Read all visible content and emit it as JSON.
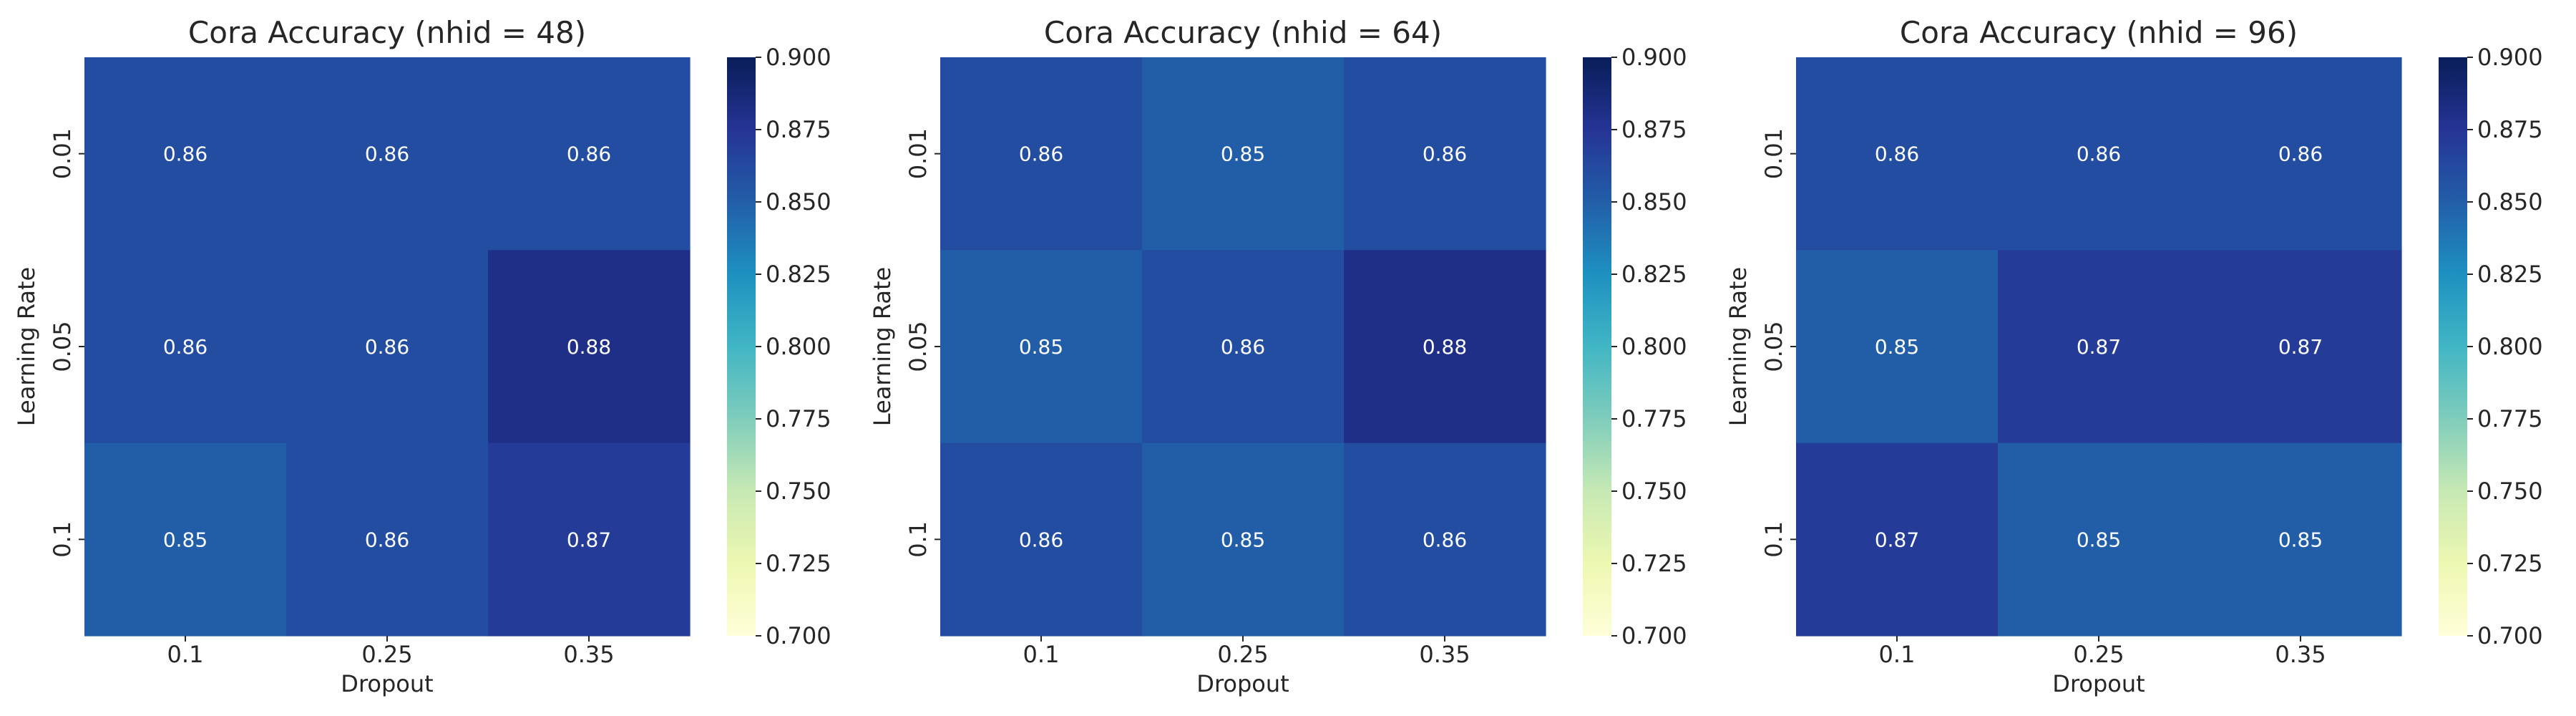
{
  "chart_data": [
    {
      "type": "heatmap",
      "title": "Cora Accuracy (nhid = 48)",
      "xlabel": "Dropout",
      "ylabel": "Learning Rate",
      "x_categories": [
        "0.1",
        "0.25",
        "0.35"
      ],
      "y_categories": [
        "0.01",
        "0.05",
        "0.1"
      ],
      "values": [
        [
          0.86,
          0.86,
          0.86
        ],
        [
          0.86,
          0.86,
          0.88
        ],
        [
          0.85,
          0.86,
          0.87
        ]
      ],
      "value_labels": [
        [
          "0.86",
          "0.86",
          "0.86"
        ],
        [
          "0.86",
          "0.86",
          "0.88"
        ],
        [
          "0.85",
          "0.86",
          "0.87"
        ]
      ],
      "colorbar": {
        "range": [
          0.7,
          0.9
        ],
        "ticks": [
          "0.700",
          "0.725",
          "0.750",
          "0.775",
          "0.800",
          "0.825",
          "0.850",
          "0.875",
          "0.900"
        ],
        "colormap": "YlGnBu"
      }
    },
    {
      "type": "heatmap",
      "title": "Cora Accuracy (nhid = 64)",
      "xlabel": "Dropout",
      "ylabel": "Learning Rate",
      "x_categories": [
        "0.1",
        "0.25",
        "0.35"
      ],
      "y_categories": [
        "0.01",
        "0.05",
        "0.1"
      ],
      "values": [
        [
          0.86,
          0.85,
          0.86
        ],
        [
          0.85,
          0.86,
          0.88
        ],
        [
          0.86,
          0.85,
          0.86
        ]
      ],
      "value_labels": [
        [
          "0.86",
          "0.85",
          "0.86"
        ],
        [
          "0.85",
          "0.86",
          "0.88"
        ],
        [
          "0.86",
          "0.85",
          "0.86"
        ]
      ],
      "colorbar": {
        "range": [
          0.7,
          0.9
        ],
        "ticks": [
          "0.700",
          "0.725",
          "0.750",
          "0.775",
          "0.800",
          "0.825",
          "0.850",
          "0.875",
          "0.900"
        ],
        "colormap": "YlGnBu"
      }
    },
    {
      "type": "heatmap",
      "title": "Cora Accuracy (nhid = 96)",
      "xlabel": "Dropout",
      "ylabel": "Learning Rate",
      "x_categories": [
        "0.1",
        "0.25",
        "0.35"
      ],
      "y_categories": [
        "0.01",
        "0.05",
        "0.1"
      ],
      "values": [
        [
          0.86,
          0.86,
          0.86
        ],
        [
          0.85,
          0.87,
          0.87
        ],
        [
          0.87,
          0.85,
          0.85
        ]
      ],
      "value_labels": [
        [
          "0.86",
          "0.86",
          "0.86"
        ],
        [
          "0.85",
          "0.87",
          "0.87"
        ],
        [
          "0.87",
          "0.85",
          "0.85"
        ]
      ],
      "colorbar": {
        "range": [
          0.7,
          0.9
        ],
        "ticks": [
          "0.700",
          "0.725",
          "0.750",
          "0.775",
          "0.800",
          "0.825",
          "0.850",
          "0.875",
          "0.900"
        ],
        "colormap": "YlGnBu"
      }
    }
  ],
  "colors": {
    "colormap_stops": [
      "#ffffd9",
      "#edf8b1",
      "#c7e9b4",
      "#7fcdbb",
      "#41b6c4",
      "#1d91c0",
      "#225ea8",
      "#253494",
      "#081d58"
    ],
    "text": "#262626",
    "cell_text": "#ffffff"
  }
}
